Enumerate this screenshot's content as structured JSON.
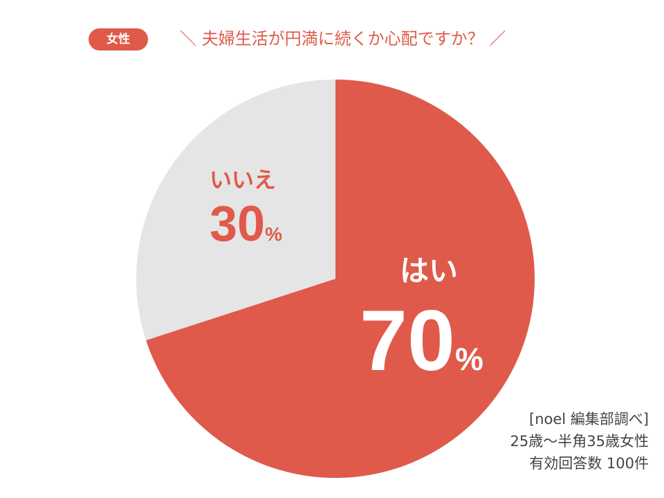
{
  "badge": {
    "label": "女性"
  },
  "colors": {
    "accent": "#DF5A4A",
    "light": "#E5E5E5",
    "source_text": "#444444"
  },
  "chart_data": {
    "type": "pie",
    "title": "＼ 夫婦生活が円満に続くか心配ですか？ ／",
    "slices": [
      {
        "label": "はい",
        "value": 70,
        "percent_text": "70",
        "unit": "%",
        "color": "#DF5A4A"
      },
      {
        "label": "いいえ",
        "value": 30,
        "percent_text": "30",
        "unit": "%",
        "color": "#E5E5E5"
      }
    ],
    "start_angle_deg": 0,
    "direction": "clockwise"
  },
  "source": {
    "line1": "[noel 編集部調べ]",
    "line2": "25歳〜半角35歳女性",
    "line3": "有効回答数 100件"
  }
}
